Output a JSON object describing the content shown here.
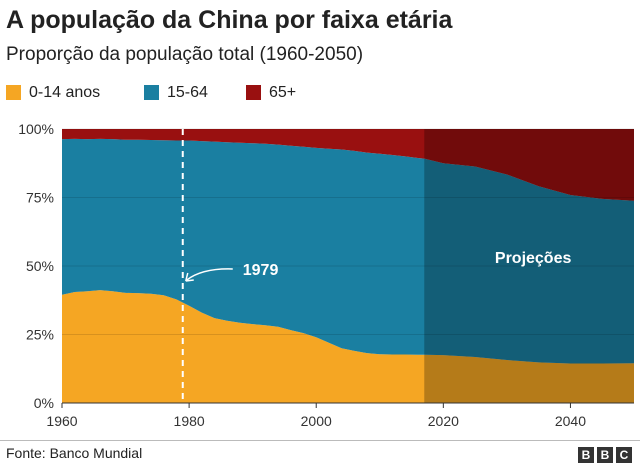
{
  "header": {
    "title": "A população da China por faixa etária",
    "subtitle": "Proporção da população total (1960-2050)"
  },
  "legend": [
    {
      "label": "0-14 anos",
      "color": "#f5a623"
    },
    {
      "label": "15-64",
      "color": "#1a7fa1"
    },
    {
      "label": "65+",
      "color": "#991010"
    }
  ],
  "chart_data": {
    "type": "area",
    "stacked": true,
    "x": [
      1960,
      1962,
      1964,
      1966,
      1968,
      1970,
      1972,
      1974,
      1976,
      1978,
      1980,
      1982,
      1984,
      1986,
      1988,
      1990,
      1992,
      1994,
      1996,
      1998,
      2000,
      2002,
      2004,
      2006,
      2008,
      2010,
      2012,
      2014,
      2016,
      2017,
      2020,
      2025,
      2030,
      2035,
      2040,
      2045,
      2050
    ],
    "series": [
      {
        "name": "0-14 anos",
        "color": "#f5a623",
        "values": [
          39.5,
          40.5,
          40.8,
          41.2,
          40.8,
          40.2,
          40.1,
          39.9,
          39.3,
          37.8,
          35.5,
          33.0,
          31.0,
          30.0,
          29.3,
          28.8,
          28.4,
          27.8,
          26.6,
          25.5,
          24.0,
          22.0,
          20.0,
          19.0,
          18.2,
          17.8,
          17.7,
          17.7,
          17.6,
          17.6,
          17.5,
          16.8,
          15.7,
          14.8,
          14.4,
          14.4,
          14.5
        ]
      },
      {
        "name": "15-64",
        "color": "#1a7fa1",
        "values": [
          56.8,
          55.9,
          55.5,
          55.2,
          55.5,
          55.9,
          56.0,
          56.1,
          56.6,
          58.0,
          60.3,
          62.6,
          64.4,
          65.2,
          65.7,
          66.0,
          66.2,
          66.5,
          67.3,
          68.0,
          69.1,
          70.8,
          72.5,
          73.0,
          73.2,
          73.2,
          72.8,
          72.3,
          71.8,
          71.6,
          70.0,
          69.5,
          67.7,
          64.3,
          61.5,
          60.1,
          59.3
        ]
      },
      {
        "name": "65+",
        "color": "#991010",
        "values": [
          3.7,
          3.6,
          3.7,
          3.6,
          3.7,
          3.9,
          3.9,
          4.0,
          4.1,
          4.2,
          4.2,
          4.4,
          4.6,
          4.8,
          5.0,
          5.2,
          5.4,
          5.7,
          6.1,
          6.5,
          6.9,
          7.2,
          7.5,
          8.0,
          8.6,
          9.0,
          9.5,
          10.0,
          10.6,
          10.8,
          12.5,
          13.7,
          16.6,
          20.9,
          24.1,
          25.5,
          26.2
        ]
      }
    ],
    "xlim": [
      1960,
      2050
    ],
    "ylim": [
      0,
      100
    ],
    "xticks": [
      1960,
      1980,
      2000,
      2020,
      2040
    ],
    "xtick_labels": [
      "1960",
      "1980",
      "2000",
      "2020",
      "2040"
    ],
    "yticks": [
      0,
      25,
      50,
      75,
      100
    ],
    "ytick_labels": [
      "0%",
      "25%",
      "50%",
      "75%",
      "100%"
    ],
    "projection_start": 2017,
    "projection_label": "Projeções",
    "marker_year": 1979,
    "marker_label": "1979",
    "grid": true,
    "legend_position": "top-left"
  },
  "footer": {
    "source": "Fonte: Banco Mundial",
    "logo_letters": [
      "B",
      "B",
      "C"
    ]
  }
}
